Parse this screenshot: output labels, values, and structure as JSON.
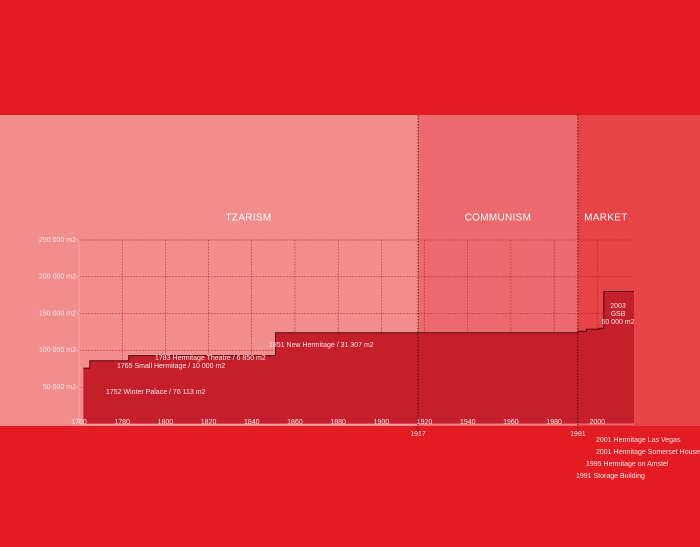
{
  "chart_data": {
    "type": "step-area",
    "eras": [
      {
        "name": "TZARISM",
        "color": "#f28d8e"
      },
      {
        "name": "COMMUNISM",
        "color": "#eb6a6d"
      },
      {
        "name": "MARKET",
        "color": "#e64446"
      }
    ],
    "era_bounds": [
      1917,
      1991
    ],
    "x": [
      1762,
      1765,
      1783,
      1851,
      1991,
      1995,
      2001,
      2003
    ],
    "values": [
      76000,
      86000,
      93000,
      124000,
      126000,
      129000,
      130000,
      180000
    ],
    "color": "#c41f2a",
    "xlim": [
      1760,
      2017
    ],
    "ylim": [
      0,
      250000
    ],
    "xticks": [
      1760,
      1780,
      1800,
      1820,
      1840,
      1860,
      1880,
      1900,
      1920,
      1940,
      1960,
      1980,
      2000
    ],
    "yticks": [
      {
        "value": 50000,
        "label": "50 000 m2"
      },
      {
        "value": 100000,
        "label": "100 000 m2"
      },
      {
        "value": 150000,
        "label": "150 000 m2"
      },
      {
        "value": 200000,
        "label": "200 000 m2"
      },
      {
        "value": 250000,
        "label": "250 000 m2"
      }
    ],
    "grid": true,
    "annotations": [
      "1752 Winter Palace / 76 113 m2",
      "1765 Small Hermitage / 10 000 m2",
      "1783 Hermitage Theatre / 6 850 m2",
      "1851 New Hermitage / 31 307 m2",
      "2003",
      "GSB",
      "50 000 m2"
    ],
    "notes": [
      "2001 Hermitage Las Vegas",
      "2001 Hermitage Somerset House",
      "1995 Hermitage on Amstel",
      "1991 Storage Building"
    ]
  }
}
